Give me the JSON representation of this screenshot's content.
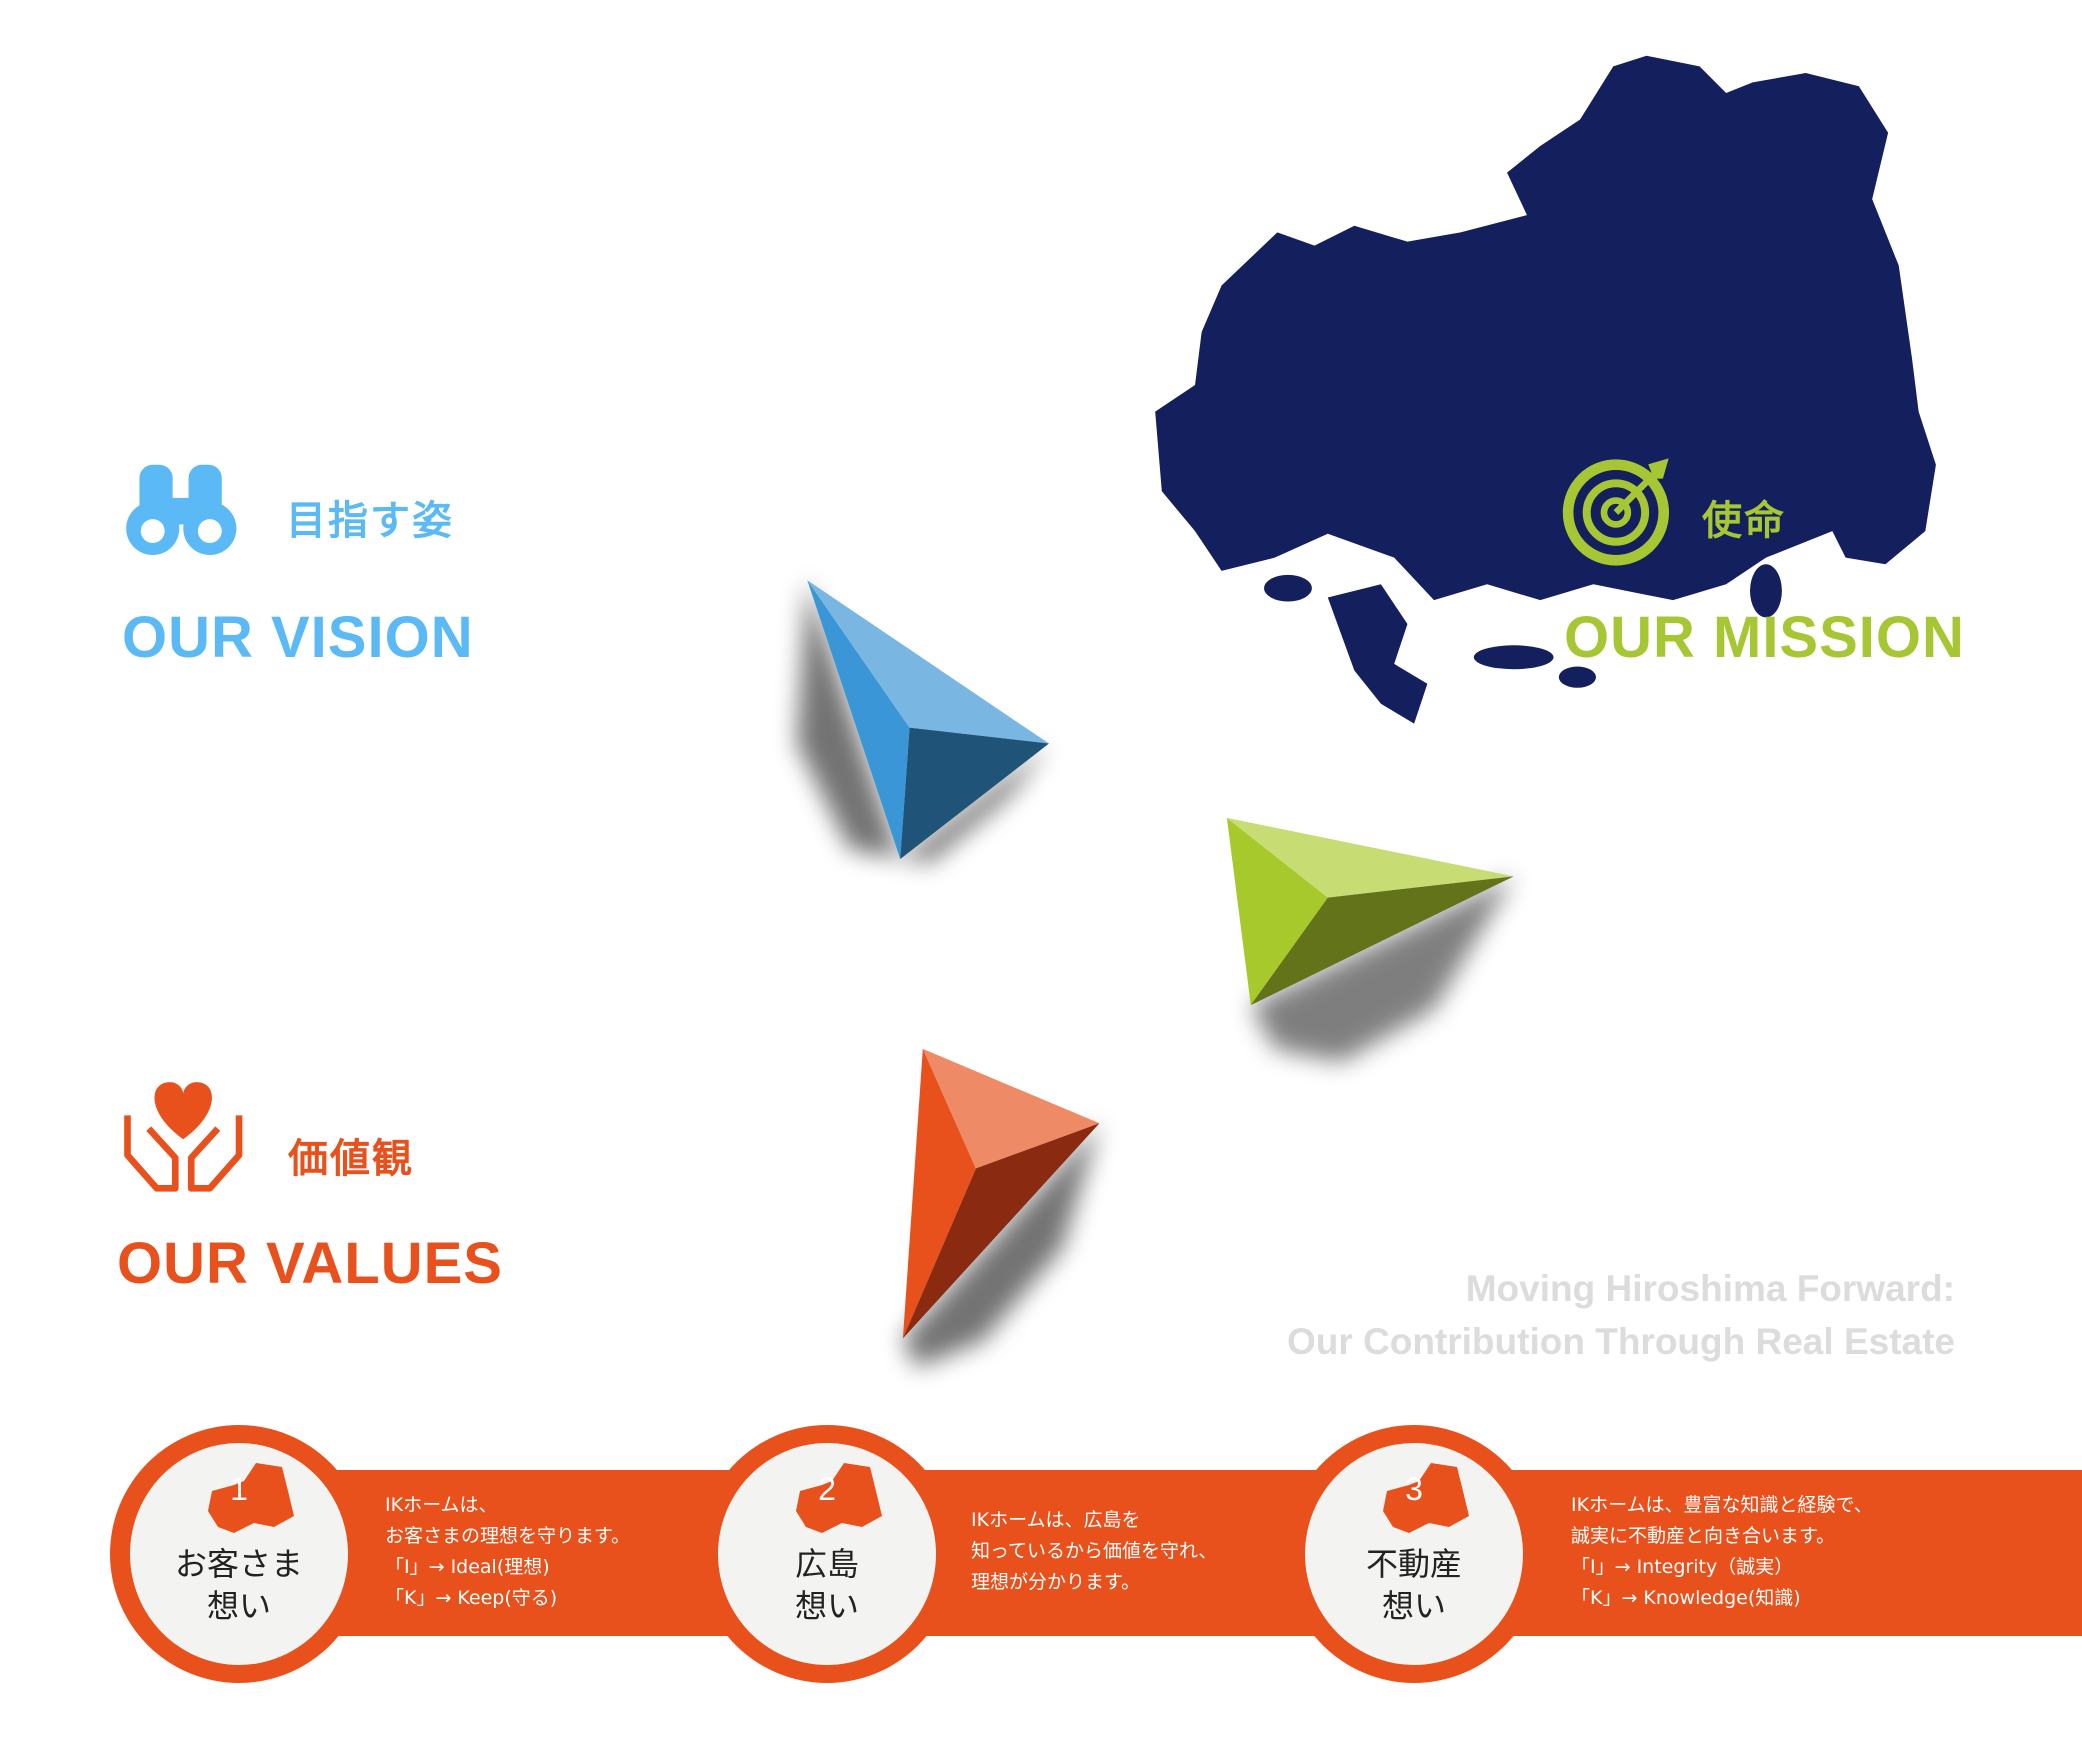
{
  "colors": {
    "vision": "#5bb9f5",
    "mission": "#a6c733",
    "values": "#e9511c",
    "map": "#14205e",
    "tagline": "#dcdcdc"
  },
  "vision": {
    "icon": "binoculars-icon",
    "jp": "目指す姿",
    "en": "OUR VISION"
  },
  "mission": {
    "icon": "target-icon",
    "jp": "使命",
    "en": "OUR MISSION"
  },
  "values": {
    "icon": "heart-hands-icon",
    "jp": "価値観",
    "en": "OUR VALUES"
  },
  "tagline": {
    "line1": "Moving Hiroshima Forward:",
    "line2": "Our Contribution Through Real Estate"
  },
  "values_items": [
    {
      "number": "1",
      "title1": "お客さま",
      "title2": "想い",
      "lines": [
        "IKホームは、",
        "お客さまの理想を守ります。",
        "「I」→ Ideal(理想)",
        "「K」→ Keep(守る)"
      ]
    },
    {
      "number": "2",
      "title1": "広島",
      "title2": "想い",
      "lines": [
        "IKホームは、広島を",
        "知っているから価値を守れ、",
        "理想が分かります。"
      ]
    },
    {
      "number": "3",
      "title1": "不動産",
      "title2": "想い",
      "lines": [
        "IKホームは、豊富な知識と経験で、",
        "誠実に不動産と向き合います。",
        "「I」→ Integrity（誠実）",
        "「K」→ Knowledge(知識)"
      ]
    }
  ]
}
